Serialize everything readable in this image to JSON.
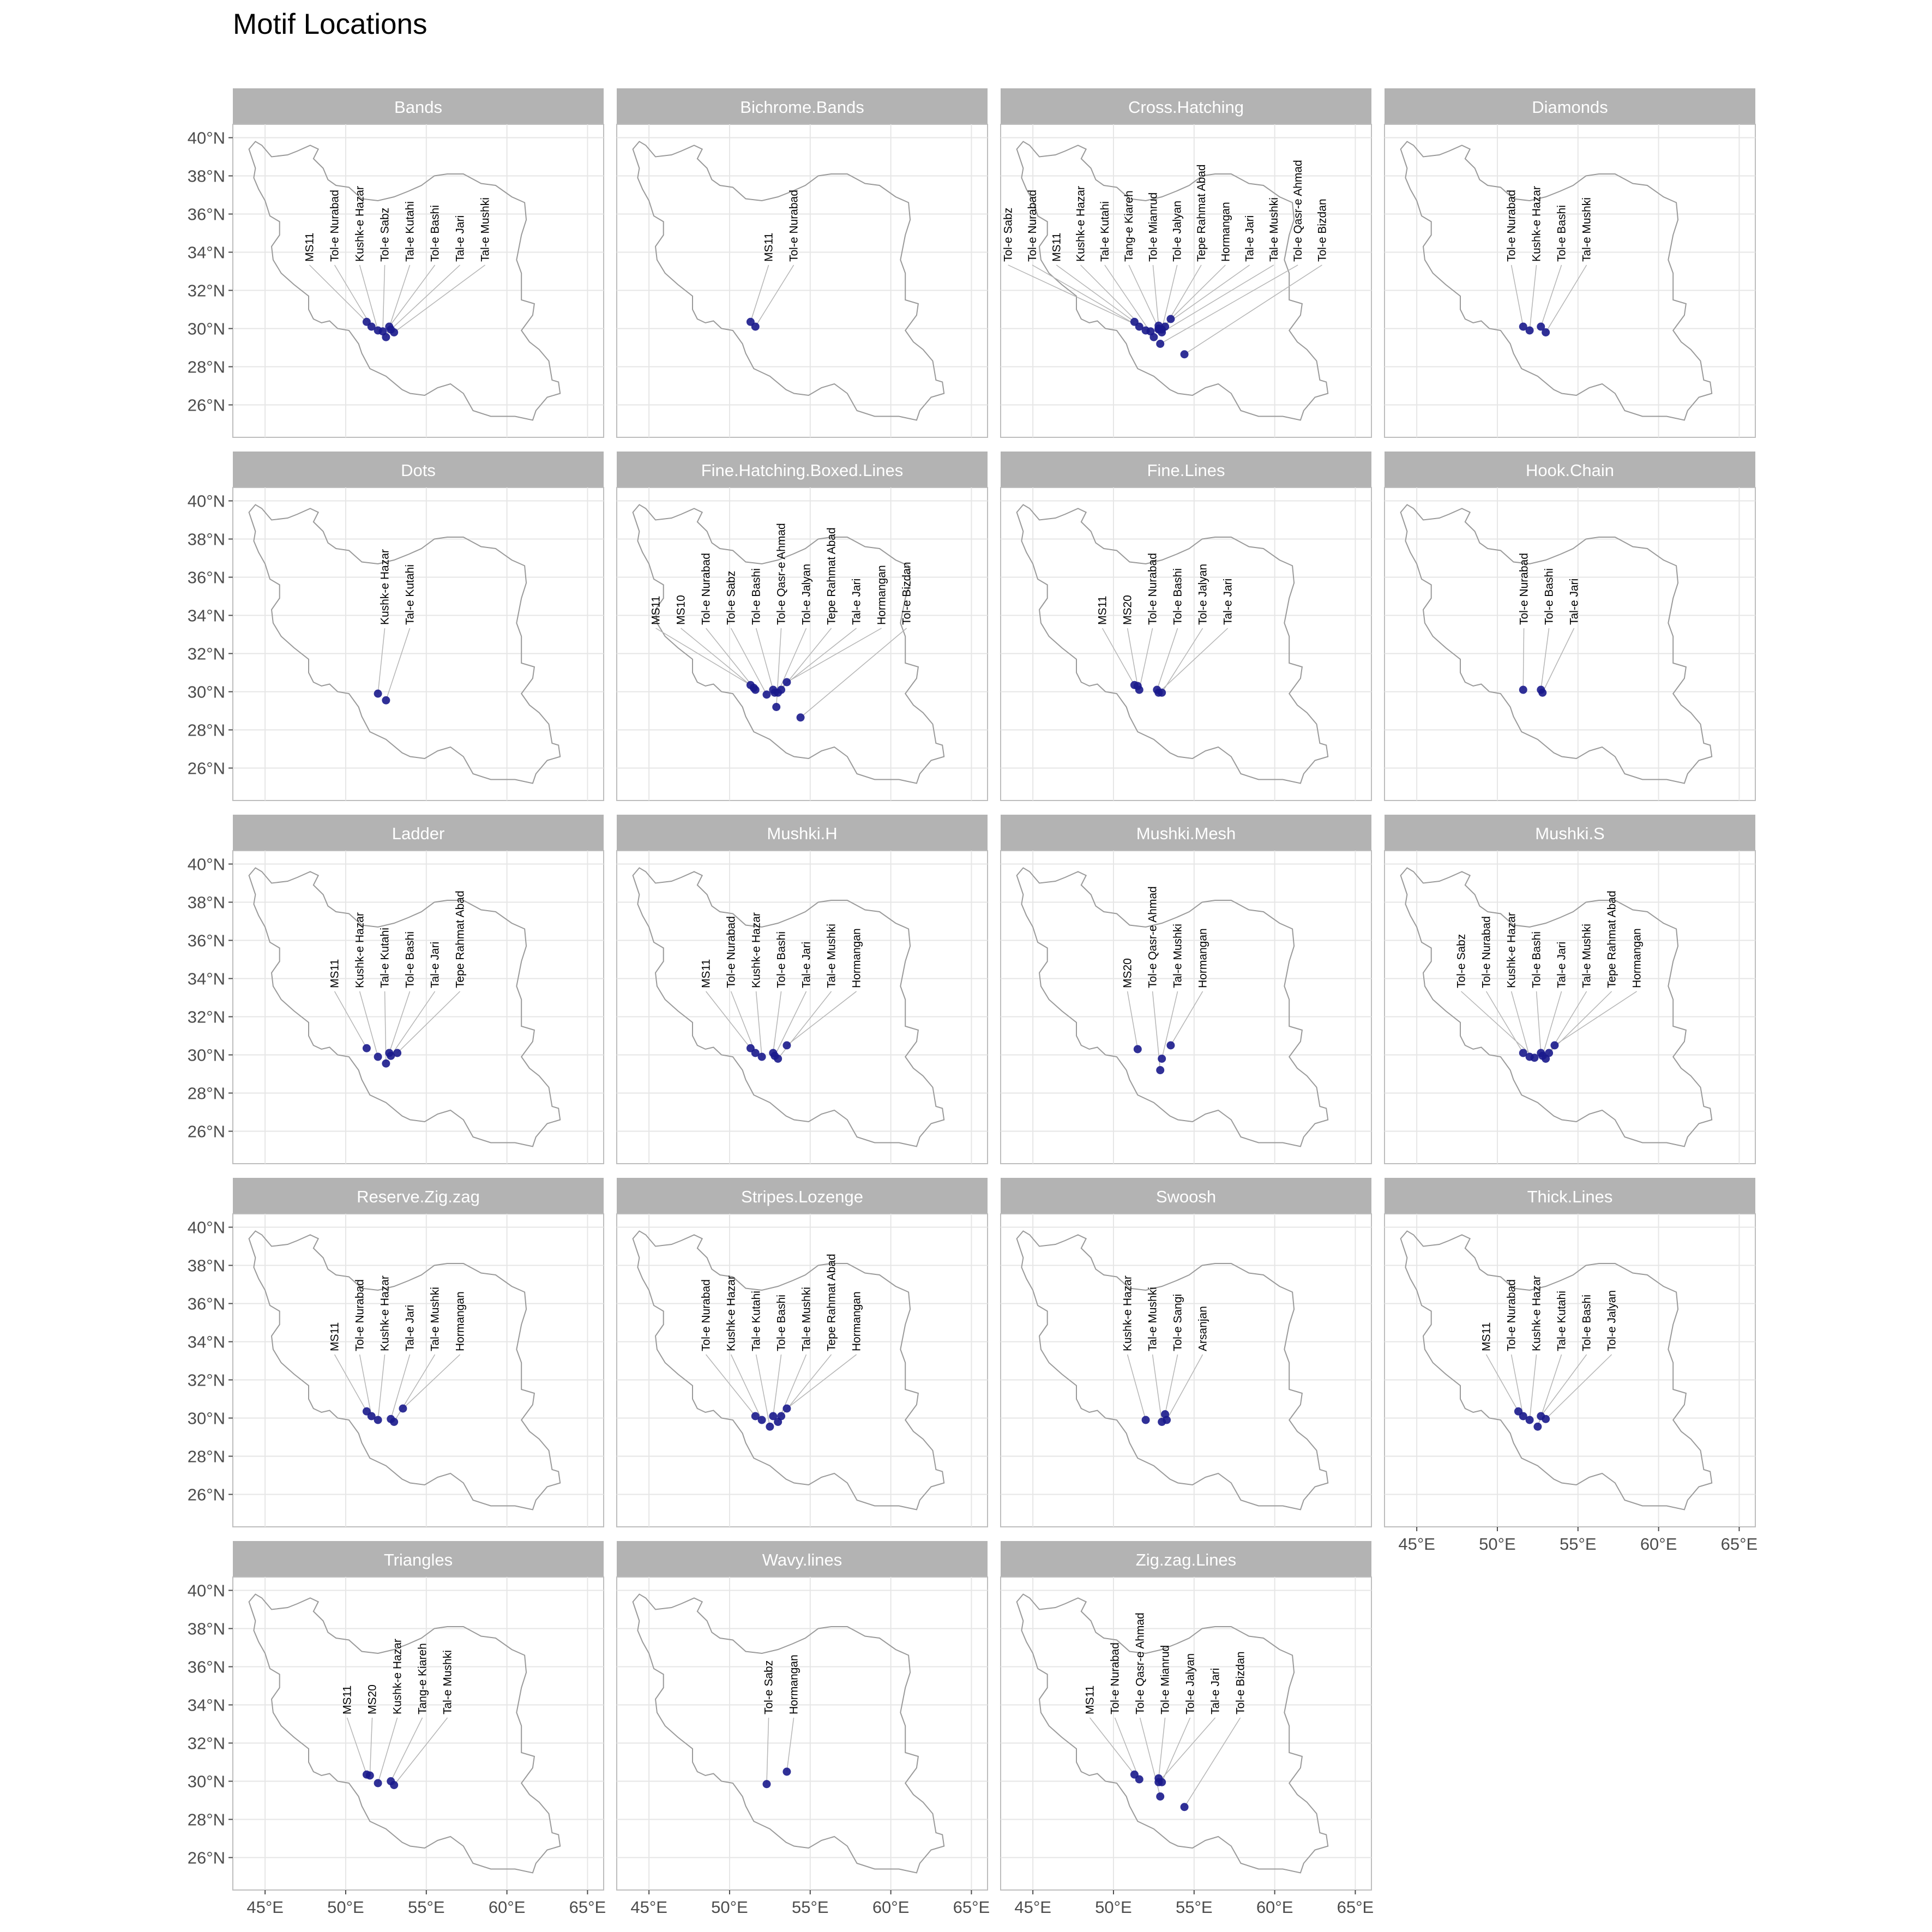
{
  "title": "Motif Locations",
  "chart_data": {
    "type": "scatter",
    "subtype": "faceted map of Iran with labelled site points",
    "xlim": [
      43,
      66
    ],
    "ylim": [
      24.3,
      40.7
    ],
    "x_ticks": [
      45,
      50,
      55,
      60,
      65
    ],
    "x_tick_labels": [
      "45°E",
      "50°E",
      "55°E",
      "60°E",
      "65°E"
    ],
    "y_ticks": [
      26,
      28,
      30,
      32,
      34,
      36,
      38,
      40
    ],
    "y_tick_labels": [
      "26°N",
      "28°N",
      "30°N",
      "32°N",
      "34°N",
      "36°N",
      "38°N",
      "40°N"
    ],
    "grid": true,
    "colors": {
      "point": "#1a1a8c",
      "outline": "#9a9a9a",
      "strip": "#b3b3b3",
      "grid": "#e6e6e6",
      "leader": "#b5b5b5"
    },
    "sites": {
      "MS11": [
        51.3,
        30.35
      ],
      "MS10": [
        51.5,
        30.2
      ],
      "MS20": [
        51.5,
        30.3
      ],
      "Tol-e Nurabad": [
        51.6,
        30.1
      ],
      "Kushk-e Hazar": [
        52.0,
        29.9
      ],
      "Tol-e Sabz": [
        52.3,
        29.85
      ],
      "Tal-e Kutahi": [
        52.5,
        29.55
      ],
      "Tol-e Bashi": [
        52.7,
        30.1
      ],
      "Tal-e Jari": [
        52.8,
        29.95
      ],
      "Tal-e Mushki": [
        53.0,
        29.8
      ],
      "Tang-e Kiareh": [
        52.8,
        30.0
      ],
      "Tol-e Mianrud": [
        52.8,
        30.15
      ],
      "Tol-e Jalyan": [
        53.0,
        29.95
      ],
      "Tepe Rahmat Abad": [
        53.2,
        30.1
      ],
      "Hormangan": [
        53.55,
        30.5
      ],
      "Tol-e Qasr-e Ahmad": [
        52.9,
        29.2
      ],
      "Tol-e Bizdan": [
        54.4,
        28.65
      ],
      "Tol-e Sangi": [
        53.2,
        30.2
      ],
      "Arsanjan": [
        53.3,
        29.9
      ]
    },
    "facets": [
      {
        "name": "Bands",
        "sites": [
          "MS11",
          "Tol-e Nurabad",
          "Kushk-e Hazar",
          "Tol-e Sabz",
          "Tal-e Kutahi",
          "Tol-e Bashi",
          "Tal-e Jari",
          "Tal-e Mushki"
        ]
      },
      {
        "name": "Bichrome.Bands",
        "sites": [
          "MS11",
          "Tol-e Nurabad"
        ]
      },
      {
        "name": "Cross.Hatching",
        "sites": [
          "Tol-e Sabz",
          "Tol-e Nurabad",
          "MS11",
          "Kushk-e Hazar",
          "Tal-e Kutahi",
          "Tang-e Kiareh",
          "Tol-e Mianrud",
          "Tol-e Jalyan",
          "Tepe Rahmat Abad",
          "Hormangan",
          "Tal-e Jari",
          "Tal-e Mushki",
          "Tol-e Qasr-e Ahmad",
          "Tol-e Bizdan"
        ]
      },
      {
        "name": "Diamonds",
        "sites": [
          "Tol-e Nurabad",
          "Kushk-e Hazar",
          "Tol-e Bashi",
          "Tal-e Mushki"
        ]
      },
      {
        "name": "Dots",
        "sites": [
          "Kushk-e Hazar",
          "Tal-e Kutahi"
        ]
      },
      {
        "name": "Fine.Hatching.Boxed.Lines",
        "sites": [
          "MS11",
          "MS10",
          "Tol-e Nurabad",
          "Tol-e Sabz",
          "Tol-e Bashi",
          "Tol-e Qasr-e Ahmad",
          "Tol-e Jalyan",
          "Tepe Rahmat Abad",
          "Tal-e Jari",
          "Hormangan",
          "Tol-e Bizdan"
        ]
      },
      {
        "name": "Fine.Lines",
        "sites": [
          "MS11",
          "MS20",
          "Tol-e Nurabad",
          "Tol-e Bashi",
          "Tol-e Jalyan",
          "Tal-e Jari"
        ]
      },
      {
        "name": "Hook.Chain",
        "sites": [
          "Tol-e Nurabad",
          "Tol-e Bashi",
          "Tal-e Jari"
        ]
      },
      {
        "name": "Ladder",
        "sites": [
          "MS11",
          "Kushk-e Hazar",
          "Tal-e Kutahi",
          "Tol-e Bashi",
          "Tal-e Jari",
          "Tepe Rahmat Abad"
        ]
      },
      {
        "name": "Mushki.H",
        "sites": [
          "MS11",
          "Tol-e Nurabad",
          "Kushk-e Hazar",
          "Tol-e Bashi",
          "Tal-e Jari",
          "Tal-e Mushki",
          "Hormangan"
        ]
      },
      {
        "name": "Mushki.Mesh",
        "sites": [
          "MS20",
          "Tol-e Qasr-e Ahmad",
          "Tal-e Mushki",
          "Hormangan"
        ]
      },
      {
        "name": "Mushki.S",
        "sites": [
          "Tol-e Sabz",
          "Tol-e Nurabad",
          "Kushk-e Hazar",
          "Tol-e Bashi",
          "Tal-e Jari",
          "Tal-e Mushki",
          "Tepe Rahmat Abad",
          "Hormangan"
        ]
      },
      {
        "name": "Reserve.Zig.zag",
        "sites": [
          "MS11",
          "Tol-e Nurabad",
          "Kushk-e Hazar",
          "Tal-e Jari",
          "Tal-e Mushki",
          "Hormangan"
        ]
      },
      {
        "name": "Stripes.Lozenge",
        "sites": [
          "Tol-e Nurabad",
          "Kushk-e Hazar",
          "Tal-e Kutahi",
          "Tol-e Bashi",
          "Tal-e Mushki",
          "Tepe Rahmat Abad",
          "Hormangan"
        ]
      },
      {
        "name": "Swoosh",
        "sites": [
          "Kushk-e Hazar",
          "Tal-e Mushki",
          "Tol-e Sangi",
          "Arsanjan"
        ]
      },
      {
        "name": "Thick.Lines",
        "sites": [
          "MS11",
          "Tol-e Nurabad",
          "Kushk-e Hazar",
          "Tal-e Kutahi",
          "Tol-e Bashi",
          "Tol-e Jalyan"
        ]
      },
      {
        "name": "Triangles",
        "sites": [
          "MS11",
          "MS20",
          "Kushk-e Hazar",
          "Tang-e Kiareh",
          "Tal-e Mushki"
        ]
      },
      {
        "name": "Wavy.lines",
        "sites": [
          "Tol-e Sabz",
          "Hormangan"
        ]
      },
      {
        "name": "Zig.zag.Lines",
        "sites": [
          "MS11",
          "Tol-e Nurabad",
          "Tol-e Qasr-e Ahmad",
          "Tol-e Mianrud",
          "Tol-e Jalyan",
          "Tal-e Jari",
          "Tol-e Bizdan"
        ]
      }
    ]
  }
}
